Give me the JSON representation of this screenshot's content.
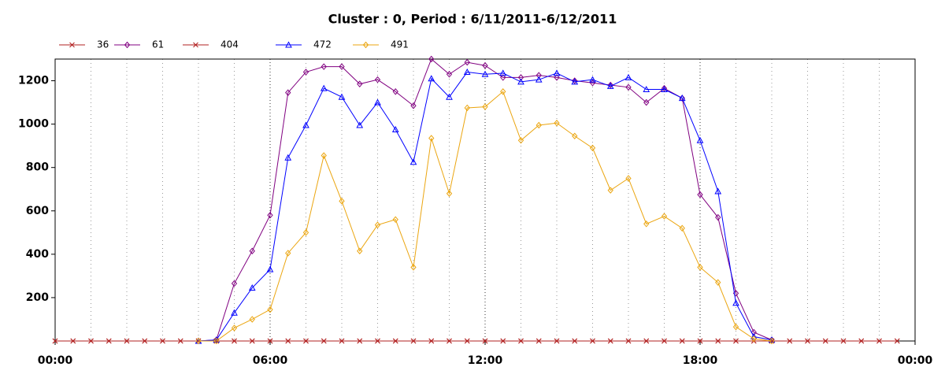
{
  "chart_data": {
    "type": "line",
    "title": "Cluster : 0, Period : 6/11/2011-6/12/2011",
    "x": [
      0,
      0.5,
      1,
      1.5,
      2,
      2.5,
      3,
      3.5,
      4,
      4.5,
      5,
      5.5,
      6,
      6.5,
      7,
      7.5,
      8,
      8.5,
      9,
      9.5,
      10,
      10.5,
      11,
      11.5,
      12,
      12.5,
      13,
      13.5,
      14,
      14.5,
      15,
      15.5,
      16,
      16.5,
      17,
      17.5,
      18,
      18.5,
      19,
      19.5,
      20,
      20.5,
      21,
      21.5,
      22,
      22.5,
      23,
      23.5
    ],
    "xlim": [
      0,
      24
    ],
    "xticks": [
      {
        "value": 0,
        "label": "00:00"
      },
      {
        "value": 6,
        "label": "06:00"
      },
      {
        "value": 12,
        "label": "12:00"
      },
      {
        "value": 18,
        "label": "18:00"
      },
      {
        "value": 24,
        "label": "00:00"
      }
    ],
    "xminorticks": [
      1,
      2,
      3,
      4,
      5,
      7,
      8,
      9,
      10,
      11,
      13,
      14,
      15,
      16,
      17,
      19,
      20,
      21,
      22,
      23
    ],
    "ylim": [
      0,
      1300
    ],
    "yticks": [
      200,
      400,
      600,
      800,
      1000,
      1200
    ],
    "grid": true,
    "legend": "top-left",
    "series": [
      {
        "name": "36",
        "color": "#b22222",
        "marker": "x",
        "values": [
          0,
          0,
          0,
          0,
          0,
          0,
          0,
          0,
          0,
          0,
          0,
          0,
          0,
          0,
          0,
          0,
          0,
          0,
          0,
          0,
          0,
          0,
          0,
          0,
          0,
          0,
          0,
          0,
          0,
          0,
          0,
          0,
          0,
          0,
          0,
          0,
          0,
          0,
          0,
          0,
          0,
          0,
          0,
          0,
          0,
          0,
          0,
          0
        ]
      },
      {
        "name": "61",
        "color": "#800080",
        "marker": "diamond",
        "values": [
          null,
          null,
          null,
          null,
          null,
          null,
          null,
          null,
          0,
          5,
          265,
          415,
          580,
          1145,
          1240,
          1265,
          1265,
          1185,
          1205,
          1150,
          1085,
          1300,
          1230,
          1285,
          1270,
          1215,
          1215,
          1225,
          1215,
          1200,
          1190,
          1180,
          1170,
          1100,
          1165,
          1120,
          675,
          570,
          220,
          40,
          5,
          null,
          null,
          null,
          null,
          null,
          null,
          null
        ]
      },
      {
        "name": "404",
        "color": "#b22222",
        "marker": "x",
        "values": [
          0,
          0,
          0,
          0,
          0,
          0,
          0,
          0,
          0,
          0,
          0,
          0,
          0,
          0,
          0,
          0,
          0,
          0,
          0,
          0,
          0,
          0,
          0,
          0,
          0,
          0,
          0,
          0,
          0,
          0,
          0,
          0,
          0,
          0,
          0,
          0,
          0,
          0,
          0,
          0,
          0,
          0,
          0,
          0,
          0,
          0,
          0,
          0
        ]
      },
      {
        "name": "472",
        "color": "#0000ff",
        "marker": "triangle",
        "values": [
          null,
          null,
          null,
          null,
          null,
          null,
          null,
          null,
          0,
          5,
          130,
          245,
          330,
          845,
          995,
          1165,
          1125,
          995,
          1100,
          975,
          825,
          1210,
          1125,
          1240,
          1230,
          1235,
          1195,
          1205,
          1235,
          1195,
          1205,
          1175,
          1215,
          1160,
          1160,
          1120,
          925,
          690,
          175,
          20,
          5,
          null,
          null,
          null,
          null,
          null,
          null,
          null
        ]
      },
      {
        "name": "491",
        "color": "#eba50f",
        "marker": "diamond",
        "values": [
          null,
          null,
          null,
          null,
          null,
          null,
          null,
          null,
          0,
          0,
          60,
          100,
          145,
          405,
          500,
          855,
          645,
          415,
          535,
          560,
          340,
          935,
          680,
          1075,
          1080,
          1150,
          925,
          995,
          1005,
          945,
          890,
          695,
          750,
          540,
          575,
          520,
          340,
          270,
          65,
          10,
          0,
          null,
          null,
          null,
          null,
          null,
          null,
          null
        ]
      }
    ]
  }
}
